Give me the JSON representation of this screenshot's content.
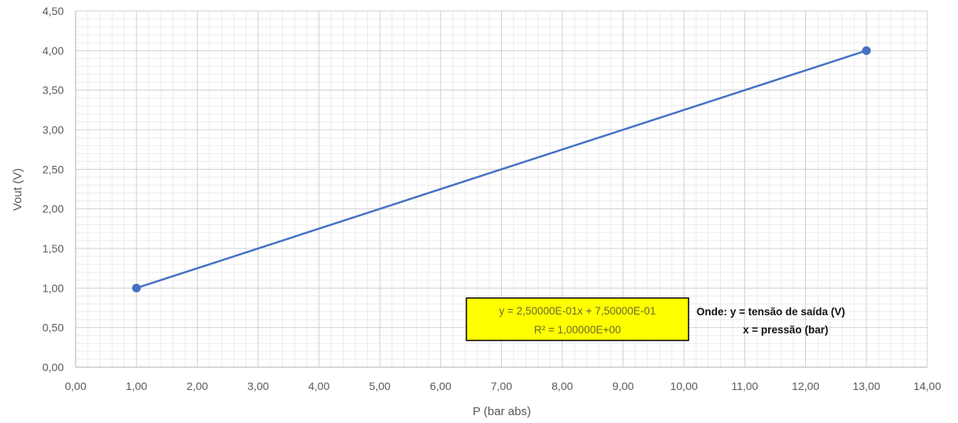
{
  "chart_data": {
    "type": "line",
    "title": "",
    "xlabel": "P  (bar abs)",
    "ylabel": "Vout (V)",
    "xlim": [
      0,
      14
    ],
    "ylim": [
      0,
      4.5
    ],
    "x_major_step": 1,
    "y_major_step": 0.5,
    "x_minor_step": 0.2,
    "y_minor_step": 0.1,
    "grid": true,
    "x_ticks": [
      "0,00",
      "1,00",
      "2,00",
      "3,00",
      "4,00",
      "5,00",
      "6,00",
      "7,00",
      "8,00",
      "9,00",
      "10,00",
      "11,00",
      "12,00",
      "13,00",
      "14,00"
    ],
    "y_ticks": [
      "0,00",
      "0,50",
      "1,00",
      "1,50",
      "2,00",
      "2,50",
      "3,00",
      "3,50",
      "4,00",
      "4,50"
    ],
    "series": [
      {
        "x": [
          1,
          13
        ],
        "y": [
          1,
          4
        ],
        "color": "#4472c4",
        "marker": "circle"
      }
    ],
    "trendline_label": {
      "equation": "y = 2,50000E-01x + 7,50000E-01",
      "r2": "R² = 1,00000E+00",
      "background": "#ffff00",
      "border": "#000000"
    },
    "annotation": {
      "line1": "Onde:  y = tensão de saída (V)",
      "line2": "x = pressão (bar)"
    }
  }
}
